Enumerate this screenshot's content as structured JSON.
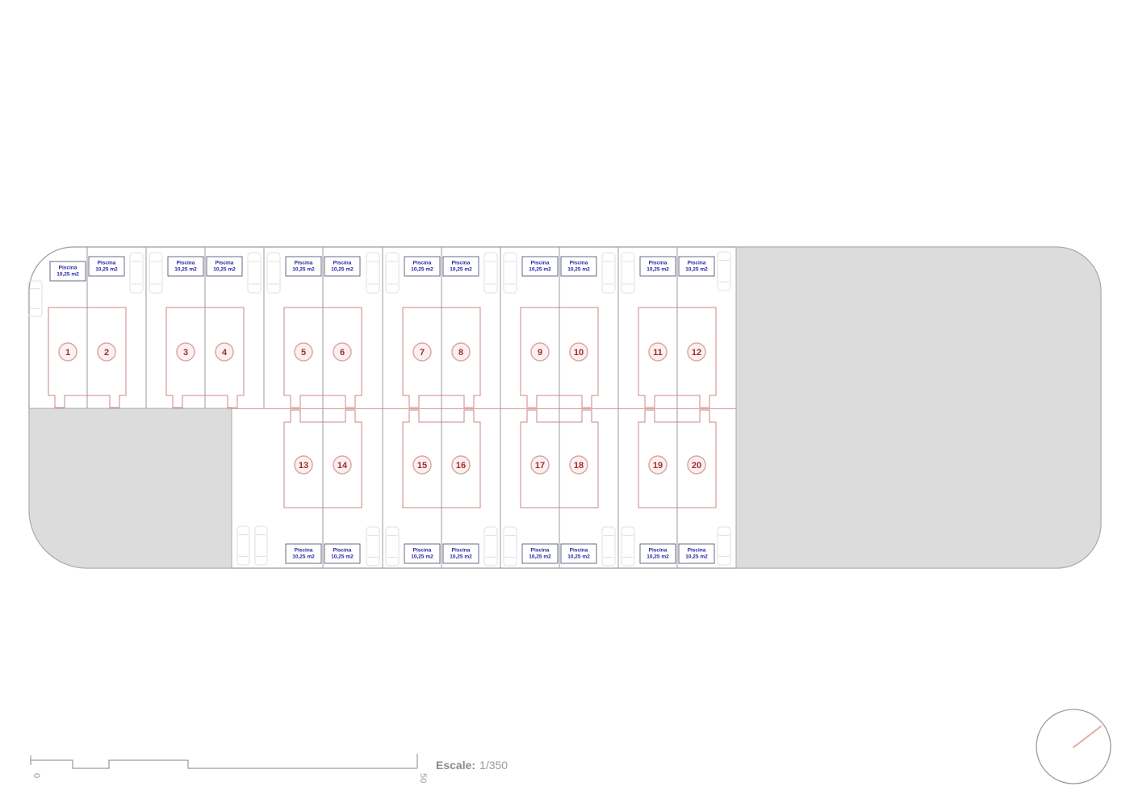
{
  "scale_bar": {
    "start_label": "0",
    "end_label": "50"
  },
  "scale_text": {
    "label": "Escale:",
    "value": "1/350"
  },
  "north_indicator": {
    "icon": "north-arrow-icon"
  },
  "colors": {
    "plan_line": "#9b9b9b",
    "parcel_fill": "#dcdcdc",
    "footprint_red": "#cf8585",
    "unit_number_red": "#a62b2b",
    "pool_label_blue": "#2323a0",
    "scale_gray": "#8c8c8c",
    "north_needle": "#e2aba1"
  },
  "units": [
    {
      "number": "1",
      "pool_name": "Piscina",
      "pool_size": "10,25 m2"
    },
    {
      "number": "2",
      "pool_name": "Piscina",
      "pool_size": "10,25 m2"
    },
    {
      "number": "3",
      "pool_name": "Piscina",
      "pool_size": "10,25 m2"
    },
    {
      "number": "4",
      "pool_name": "Piscina",
      "pool_size": "10,25 m2"
    },
    {
      "number": "5",
      "pool_name": "Piscina",
      "pool_size": "10,25 m2"
    },
    {
      "number": "6",
      "pool_name": "Piscina",
      "pool_size": "10,25 m2"
    },
    {
      "number": "7",
      "pool_name": "Piscina",
      "pool_size": "10,25 m2"
    },
    {
      "number": "8",
      "pool_name": "Piscina",
      "pool_size": "10,25 m2"
    },
    {
      "number": "9",
      "pool_name": "Piscina",
      "pool_size": "10,25 m2"
    },
    {
      "number": "10",
      "pool_name": "Piscina",
      "pool_size": "10,25 m2"
    },
    {
      "number": "11",
      "pool_name": "Piscina",
      "pool_size": "10,25 m2"
    },
    {
      "number": "12",
      "pool_name": "Piscina",
      "pool_size": "10,25 m2"
    },
    {
      "number": "13",
      "pool_name": "Piscina",
      "pool_size": "10,25 m2"
    },
    {
      "number": "14",
      "pool_name": "Piscina",
      "pool_size": "10,25 m2"
    },
    {
      "number": "15",
      "pool_name": "Piscina",
      "pool_size": "10,25 m2"
    },
    {
      "number": "16",
      "pool_name": "Piscina",
      "pool_size": "10,25 m2"
    },
    {
      "number": "17",
      "pool_name": "Piscina",
      "pool_size": "10,25 m2"
    },
    {
      "number": "18",
      "pool_name": "Piscina",
      "pool_size": "10,25 m2"
    },
    {
      "number": "19",
      "pool_name": "Piscina",
      "pool_size": "10,25 m2"
    },
    {
      "number": "20",
      "pool_name": "Piscina",
      "pool_size": "10,25 m2"
    }
  ]
}
